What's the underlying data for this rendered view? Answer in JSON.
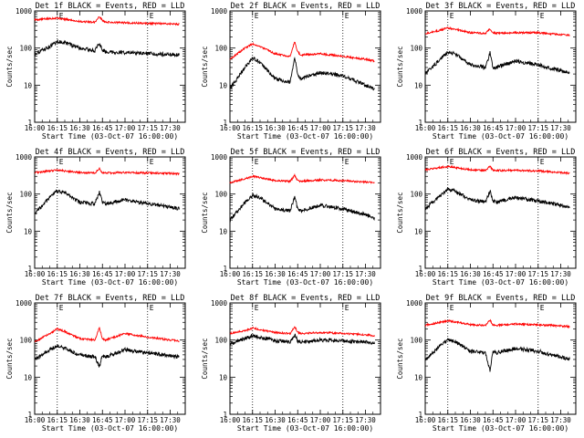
{
  "common": {
    "xlabel": "Start Time (03-Oct-07 16:00:00)",
    "ylabel": "Counts/sec",
    "x_ticks": [
      "16:00",
      "16:15",
      "16:30",
      "16:45",
      "17:00",
      "17:15",
      "17:30"
    ],
    "y_ticks": [
      "1",
      "10",
      "100",
      "1000"
    ],
    "marker_labels": [
      "E",
      "E"
    ],
    "marker_times": [
      "16:15",
      "17:15"
    ],
    "colors": {
      "events": "#000000",
      "lld": "#ff0000"
    }
  },
  "panels": [
    {
      "title": "Det 1f BLACK = Events, RED = LLD"
    },
    {
      "title": "Det 2f BLACK = Events, RED = LLD"
    },
    {
      "title": "Det 3f BLACK = Events, RED = LLD"
    },
    {
      "title": "Det 4f BLACK = Events, RED = LLD"
    },
    {
      "title": "Det 5f BLACK = Events, RED = LLD"
    },
    {
      "title": "Det 6f BLACK = Events, RED = LLD"
    },
    {
      "title": "Det 7f BLACK = Events, RED = LLD"
    },
    {
      "title": "Det 8f BLACK = Events, RED = LLD"
    },
    {
      "title": "Det 9f BLACK = Events, RED = LLD"
    }
  ],
  "chart_data": [
    {
      "type": "line",
      "title": "Det 1f BLACK = Events, RED = LLD",
      "xlabel": "Start Time (03-Oct-07 16:00:00)",
      "ylabel": "Counts/sec",
      "x": [
        "16:00",
        "16:10",
        "16:15",
        "16:20",
        "16:30",
        "16:40",
        "16:43",
        "16:45",
        "16:47",
        "17:00",
        "17:15",
        "17:30",
        "17:36"
      ],
      "series": [
        {
          "name": "LLD",
          "color": "#ff0000",
          "values": [
            580,
            620,
            650,
            600,
            520,
            500,
            700,
            560,
            500,
            480,
            460,
            450,
            440
          ]
        },
        {
          "name": "Events",
          "color": "#000000",
          "values": [
            70,
            110,
            150,
            140,
            100,
            85,
            130,
            90,
            80,
            75,
            70,
            68,
            65
          ]
        }
      ],
      "ylim": [
        1,
        1000
      ],
      "yscale": "log",
      "grid": false
    },
    {
      "type": "line",
      "title": "Det 2f BLACK = Events, RED = LLD",
      "xlabel": "Start Time (03-Oct-07 16:00:00)",
      "ylabel": "Counts/sec",
      "x": [
        "16:00",
        "16:10",
        "16:15",
        "16:20",
        "16:30",
        "16:40",
        "16:43",
        "16:45",
        "16:47",
        "17:00",
        "17:15",
        "17:30",
        "17:36"
      ],
      "series": [
        {
          "name": "LLD",
          "color": "#ff0000",
          "values": [
            50,
            100,
            130,
            110,
            70,
            60,
            150,
            80,
            65,
            70,
            60,
            50,
            45
          ]
        },
        {
          "name": "Events",
          "color": "#000000",
          "values": [
            8,
            30,
            55,
            40,
            15,
            12,
            60,
            18,
            15,
            22,
            18,
            10,
            8
          ]
        }
      ],
      "ylim": [
        1,
        1000
      ],
      "yscale": "log",
      "grid": false
    },
    {
      "type": "line",
      "title": "Det 3f BLACK = Events, RED = LLD",
      "xlabel": "Start Time (03-Oct-07 16:00:00)",
      "ylabel": "Counts/sec",
      "x": [
        "16:00",
        "16:10",
        "16:15",
        "16:20",
        "16:30",
        "16:40",
        "16:43",
        "16:45",
        "16:47",
        "17:00",
        "17:15",
        "17:30",
        "17:36"
      ],
      "series": [
        {
          "name": "LLD",
          "color": "#ff0000",
          "values": [
            250,
            300,
            350,
            320,
            260,
            250,
            330,
            260,
            250,
            260,
            260,
            230,
            220
          ]
        },
        {
          "name": "Events",
          "color": "#000000",
          "values": [
            20,
            50,
            80,
            70,
            35,
            30,
            75,
            30,
            30,
            45,
            35,
            25,
            20
          ]
        }
      ],
      "ylim": [
        1,
        1000
      ],
      "yscale": "log",
      "grid": false
    },
    {
      "type": "line",
      "title": "Det 4f BLACK = Events, RED = LLD",
      "xlabel": "Start Time (03-Oct-07 16:00:00)",
      "ylabel": "Counts/sec",
      "x": [
        "16:00",
        "16:10",
        "16:15",
        "16:20",
        "16:30",
        "16:40",
        "16:43",
        "16:45",
        "16:47",
        "17:00",
        "17:15",
        "17:30",
        "17:36"
      ],
      "series": [
        {
          "name": "LLD",
          "color": "#ff0000",
          "values": [
            380,
            420,
            450,
            420,
            380,
            370,
            480,
            380,
            370,
            380,
            370,
            360,
            350
          ]
        },
        {
          "name": "Events",
          "color": "#000000",
          "values": [
            30,
            80,
            120,
            110,
            60,
            55,
            115,
            60,
            55,
            70,
            55,
            45,
            40
          ]
        }
      ],
      "ylim": [
        1,
        1000
      ],
      "yscale": "log",
      "grid": false
    },
    {
      "type": "line",
      "title": "Det 5f BLACK = Events, RED = LLD",
      "xlabel": "Start Time (03-Oct-07 16:00:00)",
      "ylabel": "Counts/sec",
      "x": [
        "16:00",
        "16:10",
        "16:15",
        "16:20",
        "16:30",
        "16:40",
        "16:43",
        "16:45",
        "16:47",
        "17:00",
        "17:15",
        "17:30",
        "17:36"
      ],
      "series": [
        {
          "name": "LLD",
          "color": "#ff0000",
          "values": [
            200,
            260,
            300,
            280,
            230,
            220,
            320,
            230,
            220,
            240,
            230,
            210,
            200
          ]
        },
        {
          "name": "Events",
          "color": "#000000",
          "values": [
            20,
            60,
            90,
            80,
            40,
            35,
            85,
            38,
            35,
            50,
            40,
            28,
            22
          ]
        }
      ],
      "ylim": [
        1,
        1000
      ],
      "yscale": "log",
      "grid": false
    },
    {
      "type": "line",
      "title": "Det 6f BLACK = Events, RED = LLD",
      "xlabel": "Start Time (03-Oct-07 16:00:00)",
      "ylabel": "Counts/sec",
      "x": [
        "16:00",
        "16:10",
        "16:15",
        "16:20",
        "16:30",
        "16:40",
        "16:43",
        "16:45",
        "16:47",
        "17:00",
        "17:15",
        "17:30",
        "17:36"
      ],
      "series": [
        {
          "name": "LLD",
          "color": "#ff0000",
          "values": [
            450,
            520,
            550,
            520,
            450,
            430,
            560,
            440,
            430,
            440,
            420,
            380,
            360
          ]
        },
        {
          "name": "Events",
          "color": "#000000",
          "values": [
            40,
            90,
            130,
            120,
            70,
            60,
            120,
            65,
            60,
            80,
            65,
            50,
            45
          ]
        }
      ],
      "ylim": [
        1,
        1000
      ],
      "yscale": "log",
      "grid": false
    },
    {
      "type": "line",
      "title": "Det 7f BLACK = Events, RED = LLD",
      "xlabel": "Start Time (03-Oct-07 16:00:00)",
      "ylabel": "Counts/sec",
      "x": [
        "16:00",
        "16:10",
        "16:15",
        "16:20",
        "16:30",
        "16:40",
        "16:43",
        "16:45",
        "16:47",
        "17:00",
        "17:15",
        "17:30",
        "17:36"
      ],
      "series": [
        {
          "name": "LLD",
          "color": "#ff0000",
          "values": [
            90,
            150,
            200,
            170,
            110,
            100,
            220,
            110,
            100,
            150,
            120,
            100,
            95
          ]
        },
        {
          "name": "Events",
          "color": "#000000",
          "values": [
            30,
            55,
            70,
            60,
            40,
            35,
            20,
            38,
            35,
            55,
            45,
            38,
            35
          ]
        }
      ],
      "ylim": [
        1,
        1000
      ],
      "yscale": "log",
      "grid": false
    },
    {
      "type": "line",
      "title": "Det 8f BLACK = Events, RED = LLD",
      "xlabel": "Start Time (03-Oct-07 16:00:00)",
      "ylabel": "Counts/sec",
      "x": [
        "16:00",
        "16:10",
        "16:15",
        "16:20",
        "16:30",
        "16:40",
        "16:43",
        "16:45",
        "16:47",
        "17:00",
        "17:15",
        "17:30",
        "17:36"
      ],
      "series": [
        {
          "name": "LLD",
          "color": "#ff0000",
          "values": [
            150,
            180,
            210,
            190,
            160,
            150,
            230,
            160,
            150,
            160,
            150,
            140,
            130
          ]
        },
        {
          "name": "Events",
          "color": "#000000",
          "values": [
            80,
            110,
            130,
            120,
            95,
            90,
            140,
            95,
            90,
            100,
            95,
            88,
            85
          ]
        }
      ],
      "ylim": [
        1,
        1000
      ],
      "yscale": "log",
      "grid": false
    },
    {
      "type": "line",
      "title": "Det 9f BLACK = Events, RED = LLD",
      "xlabel": "Start Time (03-Oct-07 16:00:00)",
      "ylabel": "Counts/sec",
      "x": [
        "16:00",
        "16:10",
        "16:15",
        "16:20",
        "16:30",
        "16:40",
        "16:43",
        "16:45",
        "16:47",
        "17:00",
        "17:15",
        "17:30",
        "17:36"
      ],
      "series": [
        {
          "name": "LLD",
          "color": "#ff0000",
          "values": [
            250,
            300,
            330,
            310,
            260,
            250,
            340,
            260,
            250,
            270,
            260,
            240,
            230
          ]
        },
        {
          "name": "Events",
          "color": "#000000",
          "values": [
            30,
            70,
            100,
            90,
            50,
            45,
            15,
            48,
            45,
            60,
            50,
            35,
            30
          ]
        }
      ],
      "ylim": [
        1,
        1000
      ],
      "yscale": "log",
      "grid": false
    }
  ]
}
